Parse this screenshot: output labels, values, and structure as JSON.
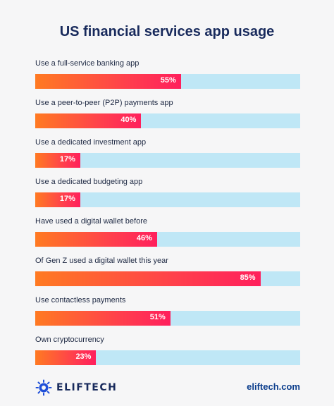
{
  "chart_data": {
    "type": "bar",
    "title": "US financial services app usage",
    "categories": [
      "Use a full-service banking app",
      "Use a peer-to-peer (P2P) payments app",
      "Use a dedicated investment app",
      "Use a dedicated budgeting app",
      "Have used a digital wallet before",
      "Of Gen Z used a digital wallet this year",
      "Use contactless payments",
      "Own cryptocurrency"
    ],
    "values": [
      55,
      40,
      17,
      17,
      46,
      85,
      51,
      23
    ],
    "value_labels": [
      "55%",
      "40%",
      "17%",
      "17%",
      "46%",
      "85%",
      "51%",
      "23%"
    ],
    "xlim": [
      0,
      100
    ],
    "colors": {
      "bar_start": "#ff7a22",
      "bar_end": "#ff1f5c",
      "track": "#bfe7f6",
      "title": "#182a5c"
    }
  },
  "footer": {
    "brand": "ELIFTECH",
    "brand_icon": "eliftech-logo-icon",
    "website": "eliftech.com"
  }
}
